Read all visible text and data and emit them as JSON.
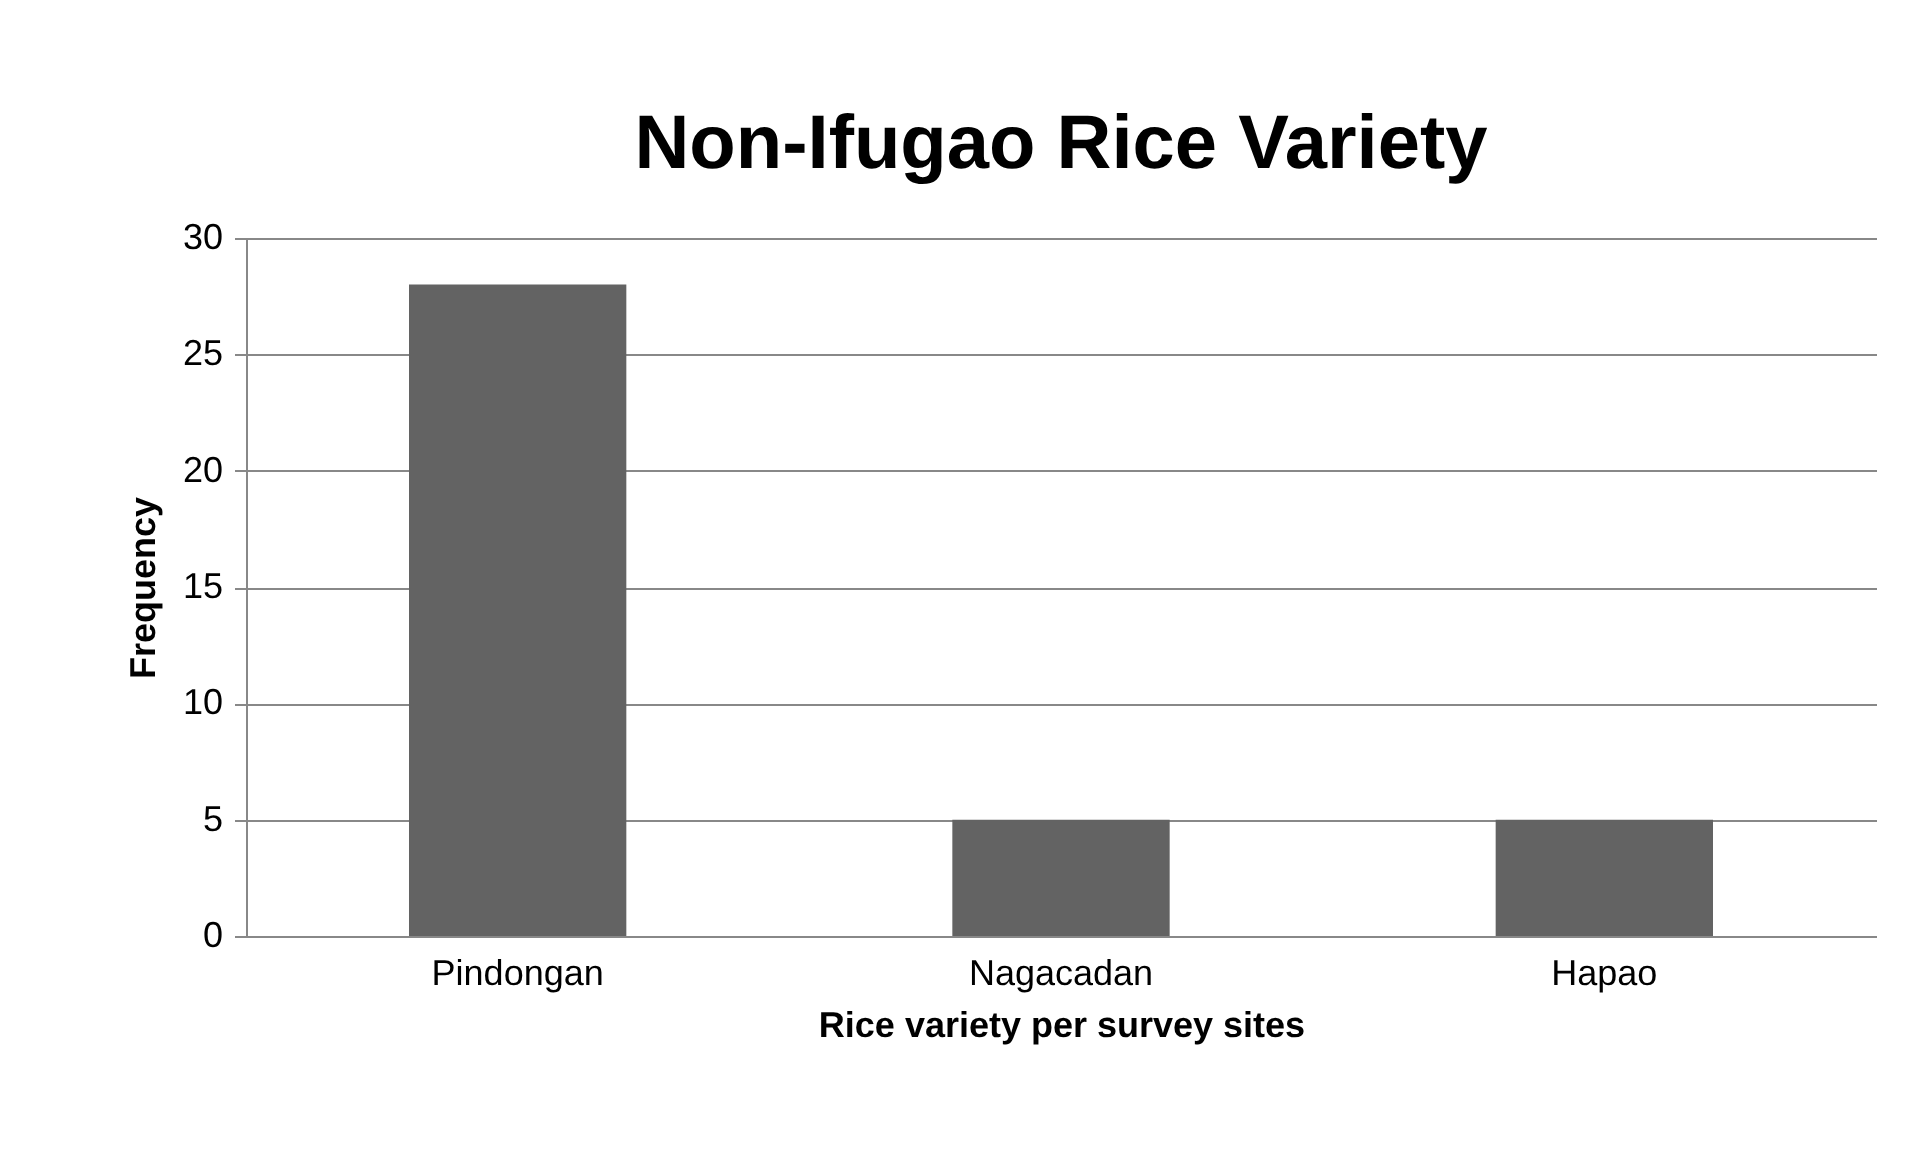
{
  "chart_data": {
    "type": "bar",
    "title": "Non-Ifugao Rice Variety",
    "xlabel": "Rice variety per survey sites",
    "ylabel": "Frequency",
    "categories": [
      "Pindongan",
      "Nagacadan",
      "Hapao"
    ],
    "values": [
      28,
      5,
      5
    ],
    "color": "#636363",
    "ylim": [
      0,
      30
    ],
    "yticks": [
      0,
      5,
      10,
      15,
      20,
      25,
      30
    ],
    "grid": "y"
  }
}
